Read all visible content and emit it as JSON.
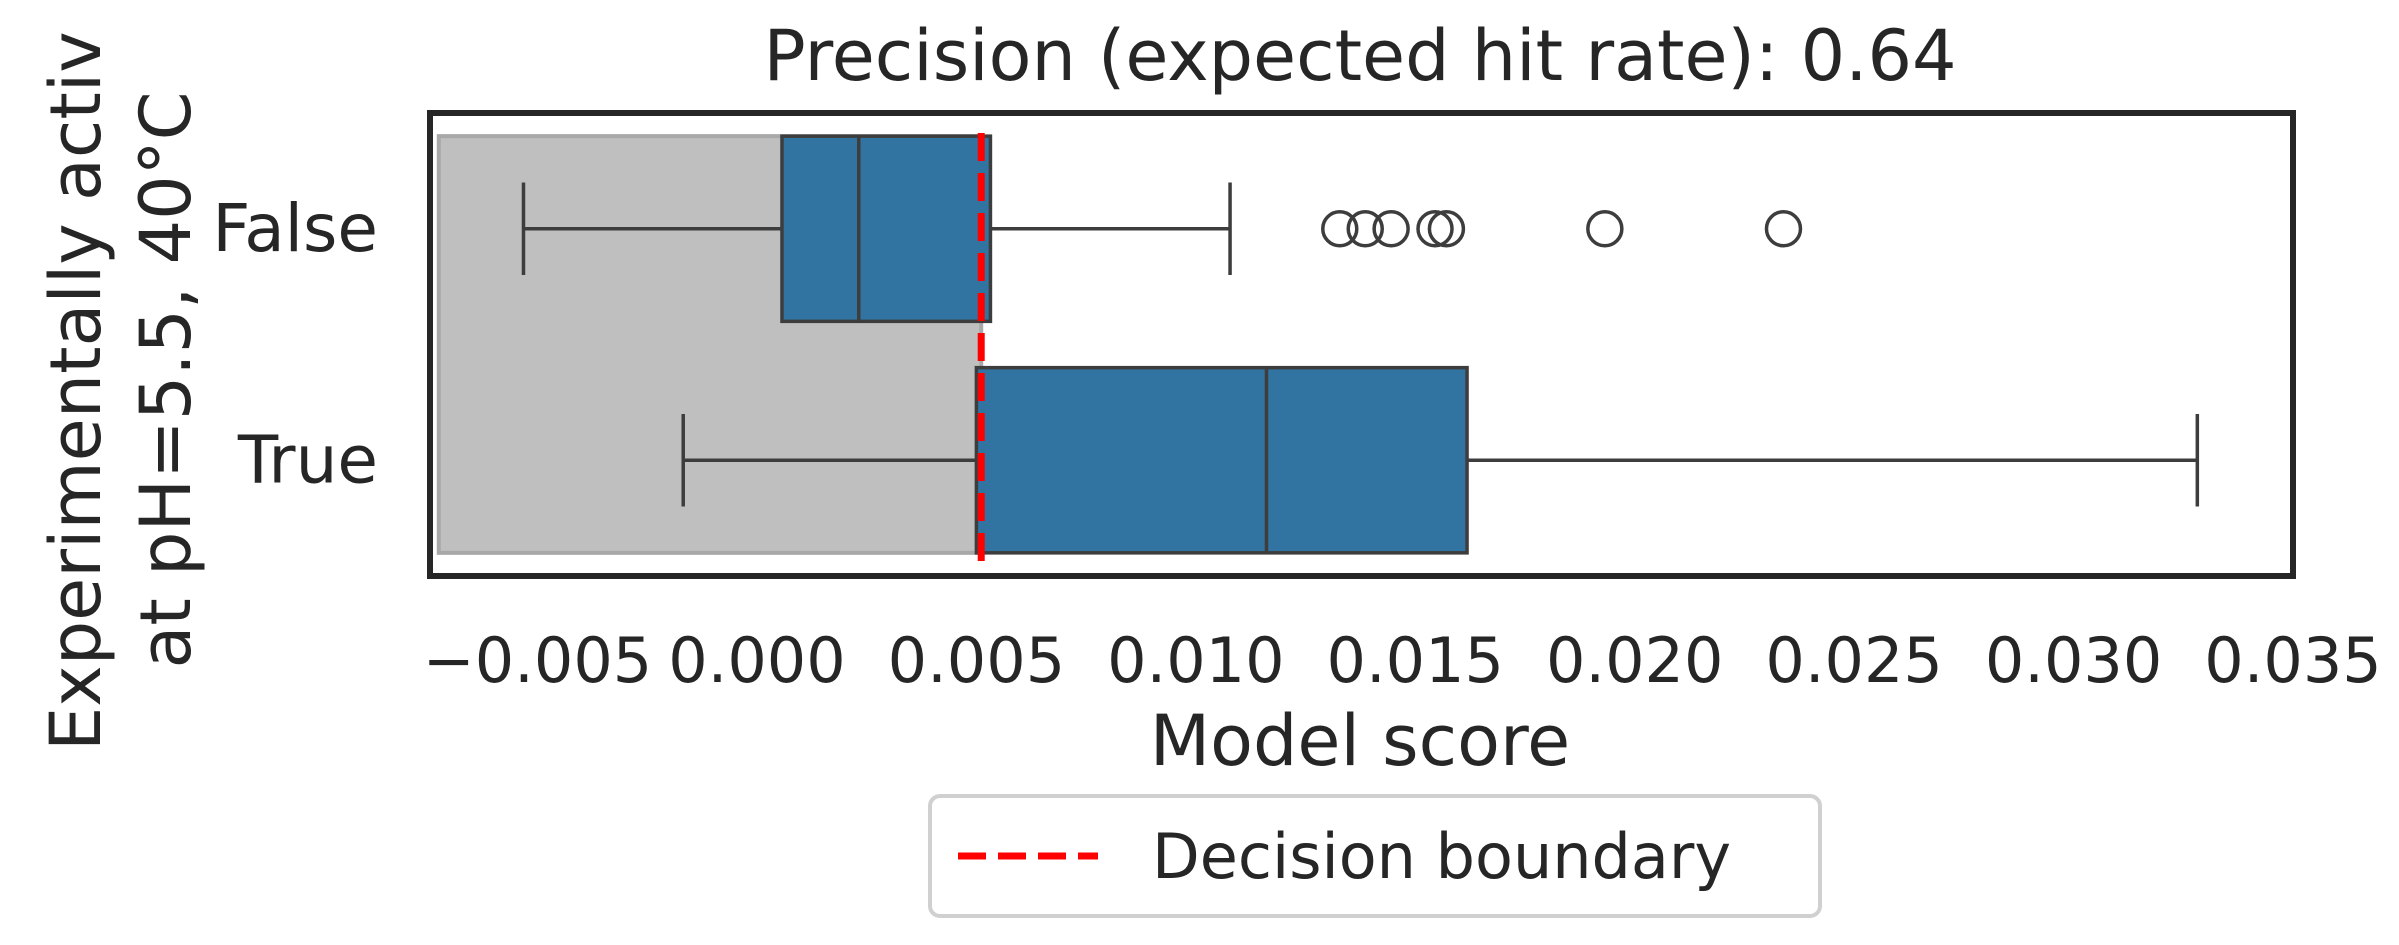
{
  "chart_data": {
    "type": "boxplot",
    "orientation": "horizontal",
    "title": "Precision (expected hit rate): 0.64",
    "xlabel": "Model score",
    "ylabel_lines": [
      "Experimentally activ",
      "at pH=5.5, 40°C"
    ],
    "xlim": [
      -0.00745,
      0.035
    ],
    "xticks": [
      -0.005,
      0.0,
      0.005,
      0.01,
      0.015,
      0.02,
      0.025,
      0.03,
      0.035
    ],
    "xtick_labels": [
      "−0.005",
      "0.000",
      "0.005",
      "0.010",
      "0.015",
      "0.020",
      "0.025",
      "0.030",
      "0.035"
    ],
    "categories": [
      "False",
      "True"
    ],
    "boxes": [
      {
        "category": "False",
        "whisker_low": -0.00532,
        "q1": 0.00057,
        "median": 0.00232,
        "q3": 0.00532,
        "whisker_high": 0.01078,
        "outliers": [
          0.01328,
          0.01386,
          0.01445,
          0.01545,
          0.01571,
          0.01932,
          0.02339
        ]
      },
      {
        "category": "True",
        "whisker_low": -0.00168,
        "q1": 0.005,
        "median": 0.01161,
        "q3": 0.01618,
        "whisker_high": 0.03282,
        "outliers": []
      }
    ],
    "decision_boundary": 0.00511,
    "shaded_region": {
      "x_start": -0.00725,
      "x_end": 0.00511
    },
    "legend": {
      "label": "Decision boundary",
      "location": "below plot, centered"
    },
    "colors": {
      "box_fill": "#3274a1",
      "box_edge": "#3d3d3d",
      "boundary": "#ff0000",
      "shade": "#bfbfbf",
      "frame": "#262626"
    }
  }
}
